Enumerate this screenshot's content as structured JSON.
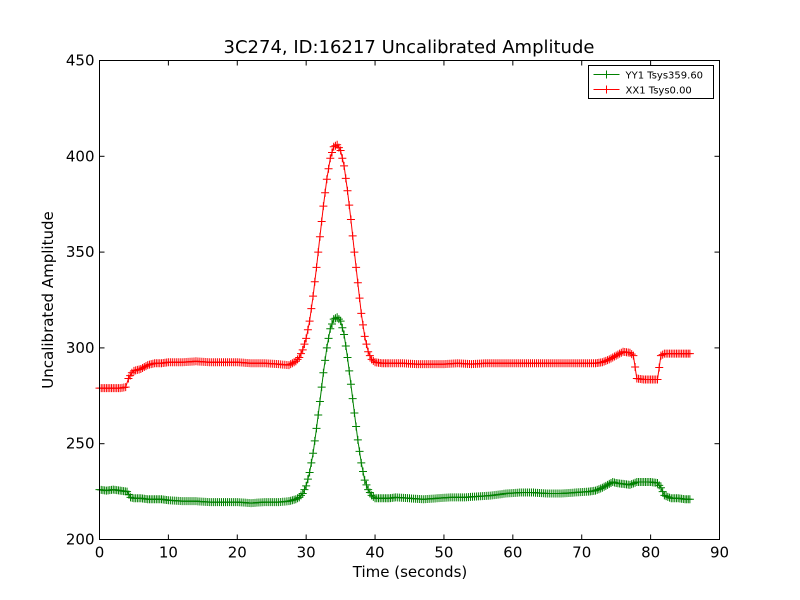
{
  "chart_data": {
    "type": "line",
    "title": "3C274, ID:16217 Uncalibrated Amplitude",
    "xlabel": "Time (seconds)",
    "ylabel": "Uncalibrated Amplitude",
    "xlim": [
      0,
      90
    ],
    "ylim": [
      200,
      450
    ],
    "xticks": [
      "0",
      "10",
      "20",
      "30",
      "40",
      "50",
      "60",
      "70",
      "80",
      "90"
    ],
    "yticks": [
      "200",
      "250",
      "300",
      "350",
      "400",
      "450"
    ],
    "grid": false,
    "legend_position": "top-right",
    "marker": "plus",
    "series": [
      {
        "name": "YY1 Tsys359.60",
        "color": "#008000",
        "points": [
          [
            0.0,
            226
          ],
          [
            1.0,
            225.5
          ],
          [
            2.0,
            226
          ],
          [
            3.0,
            225.5
          ],
          [
            4.0,
            225
          ],
          [
            4.5,
            222
          ],
          [
            5.0,
            221.5
          ],
          [
            6.0,
            221.5
          ],
          [
            7.0,
            221
          ],
          [
            8.0,
            221
          ],
          [
            9.0,
            221
          ],
          [
            10.0,
            220.5
          ],
          [
            12.0,
            220
          ],
          [
            14.0,
            220
          ],
          [
            16.0,
            219.5
          ],
          [
            18.0,
            219.5
          ],
          [
            20.0,
            219.5
          ],
          [
            22.0,
            219
          ],
          [
            24.0,
            219.5
          ],
          [
            26.0,
            219.5
          ],
          [
            27.5,
            220
          ],
          [
            28.5,
            221
          ],
          [
            29.0,
            222
          ],
          [
            29.5,
            224
          ],
          [
            30.0,
            228
          ],
          [
            30.5,
            235
          ],
          [
            31.0,
            245
          ],
          [
            31.5,
            258
          ],
          [
            32.0,
            272
          ],
          [
            32.5,
            287
          ],
          [
            33.0,
            300
          ],
          [
            33.5,
            310
          ],
          [
            34.0,
            315
          ],
          [
            34.5,
            316
          ],
          [
            35.0,
            314
          ],
          [
            35.5,
            307
          ],
          [
            36.0,
            295
          ],
          [
            36.5,
            281
          ],
          [
            37.0,
            266
          ],
          [
            37.5,
            252
          ],
          [
            38.0,
            240
          ],
          [
            38.5,
            231
          ],
          [
            39.0,
            226
          ],
          [
            39.5,
            223
          ],
          [
            40.0,
            221.5
          ],
          [
            41.0,
            221.5
          ],
          [
            42.0,
            221.5
          ],
          [
            43.0,
            222
          ],
          [
            45.0,
            221.5
          ],
          [
            47.0,
            221
          ],
          [
            49.0,
            221.5
          ],
          [
            51.0,
            222
          ],
          [
            53.0,
            222
          ],
          [
            55.0,
            222.5
          ],
          [
            57.0,
            223
          ],
          [
            59.0,
            224
          ],
          [
            61.0,
            224.5
          ],
          [
            63.0,
            224.5
          ],
          [
            65.0,
            224
          ],
          [
            67.0,
            224
          ],
          [
            69.0,
            224.5
          ],
          [
            71.0,
            225
          ],
          [
            72.0,
            225.5
          ],
          [
            73.0,
            227
          ],
          [
            74.0,
            229
          ],
          [
            74.5,
            230
          ],
          [
            75.0,
            229.5
          ],
          [
            76.0,
            229
          ],
          [
            77.0,
            228.5
          ],
          [
            78.0,
            230
          ],
          [
            79.0,
            230
          ],
          [
            80.0,
            230
          ],
          [
            81.0,
            229.5
          ],
          [
            81.5,
            227
          ],
          [
            82.0,
            223
          ],
          [
            83.0,
            221.5
          ],
          [
            84.0,
            221.5
          ],
          [
            85.0,
            221
          ],
          [
            85.7,
            221
          ]
        ]
      },
      {
        "name": "XX1 Tsys0.00",
        "color": "#ff0000",
        "points": [
          [
            0.0,
            279
          ],
          [
            1.0,
            279
          ],
          [
            2.0,
            279
          ],
          [
            3.0,
            279
          ],
          [
            3.8,
            279.5
          ],
          [
            4.2,
            284
          ],
          [
            4.7,
            287
          ],
          [
            5.0,
            288
          ],
          [
            6.0,
            289
          ],
          [
            7.0,
            291
          ],
          [
            8.0,
            292
          ],
          [
            9.0,
            292
          ],
          [
            10.0,
            292.5
          ],
          [
            12.0,
            292.5
          ],
          [
            14.0,
            293
          ],
          [
            16.0,
            292.5
          ],
          [
            18.0,
            292.5
          ],
          [
            20.0,
            292.5
          ],
          [
            22.0,
            292
          ],
          [
            24.0,
            292
          ],
          [
            26.0,
            291.5
          ],
          [
            27.5,
            291
          ],
          [
            28.5,
            293
          ],
          [
            29.0,
            295
          ],
          [
            29.5,
            299
          ],
          [
            30.0,
            305
          ],
          [
            30.5,
            314
          ],
          [
            31.0,
            327
          ],
          [
            31.5,
            342
          ],
          [
            32.0,
            358
          ],
          [
            32.5,
            374
          ],
          [
            33.0,
            388
          ],
          [
            33.5,
            399
          ],
          [
            34.0,
            405
          ],
          [
            34.5,
            406
          ],
          [
            35.0,
            403
          ],
          [
            35.5,
            395
          ],
          [
            36.0,
            382
          ],
          [
            36.5,
            367
          ],
          [
            37.0,
            350
          ],
          [
            37.5,
            334
          ],
          [
            38.0,
            318
          ],
          [
            38.5,
            306
          ],
          [
            39.0,
            298
          ],
          [
            39.5,
            294
          ],
          [
            40.0,
            292.5
          ],
          [
            41.0,
            292
          ],
          [
            42.0,
            292
          ],
          [
            44.0,
            292
          ],
          [
            46.0,
            291.5
          ],
          [
            48.0,
            291.5
          ],
          [
            50.0,
            291.5
          ],
          [
            52.0,
            292
          ],
          [
            54.0,
            291.5
          ],
          [
            56.0,
            292
          ],
          [
            58.0,
            292
          ],
          [
            60.0,
            292
          ],
          [
            62.0,
            292
          ],
          [
            64.0,
            292
          ],
          [
            66.0,
            292
          ],
          [
            68.0,
            292
          ],
          [
            70.0,
            292
          ],
          [
            72.0,
            292
          ],
          [
            73.0,
            292.5
          ],
          [
            74.0,
            294
          ],
          [
            75.0,
            296
          ],
          [
            76.0,
            298
          ],
          [
            77.0,
            297.5
          ],
          [
            77.5,
            296
          ],
          [
            78.0,
            284
          ],
          [
            79.0,
            283.5
          ],
          [
            80.0,
            283.5
          ],
          [
            81.0,
            283.5
          ],
          [
            81.5,
            296
          ],
          [
            82.0,
            297
          ],
          [
            83.0,
            297
          ],
          [
            84.0,
            297
          ],
          [
            85.0,
            297
          ],
          [
            85.7,
            297
          ]
        ]
      }
    ]
  }
}
